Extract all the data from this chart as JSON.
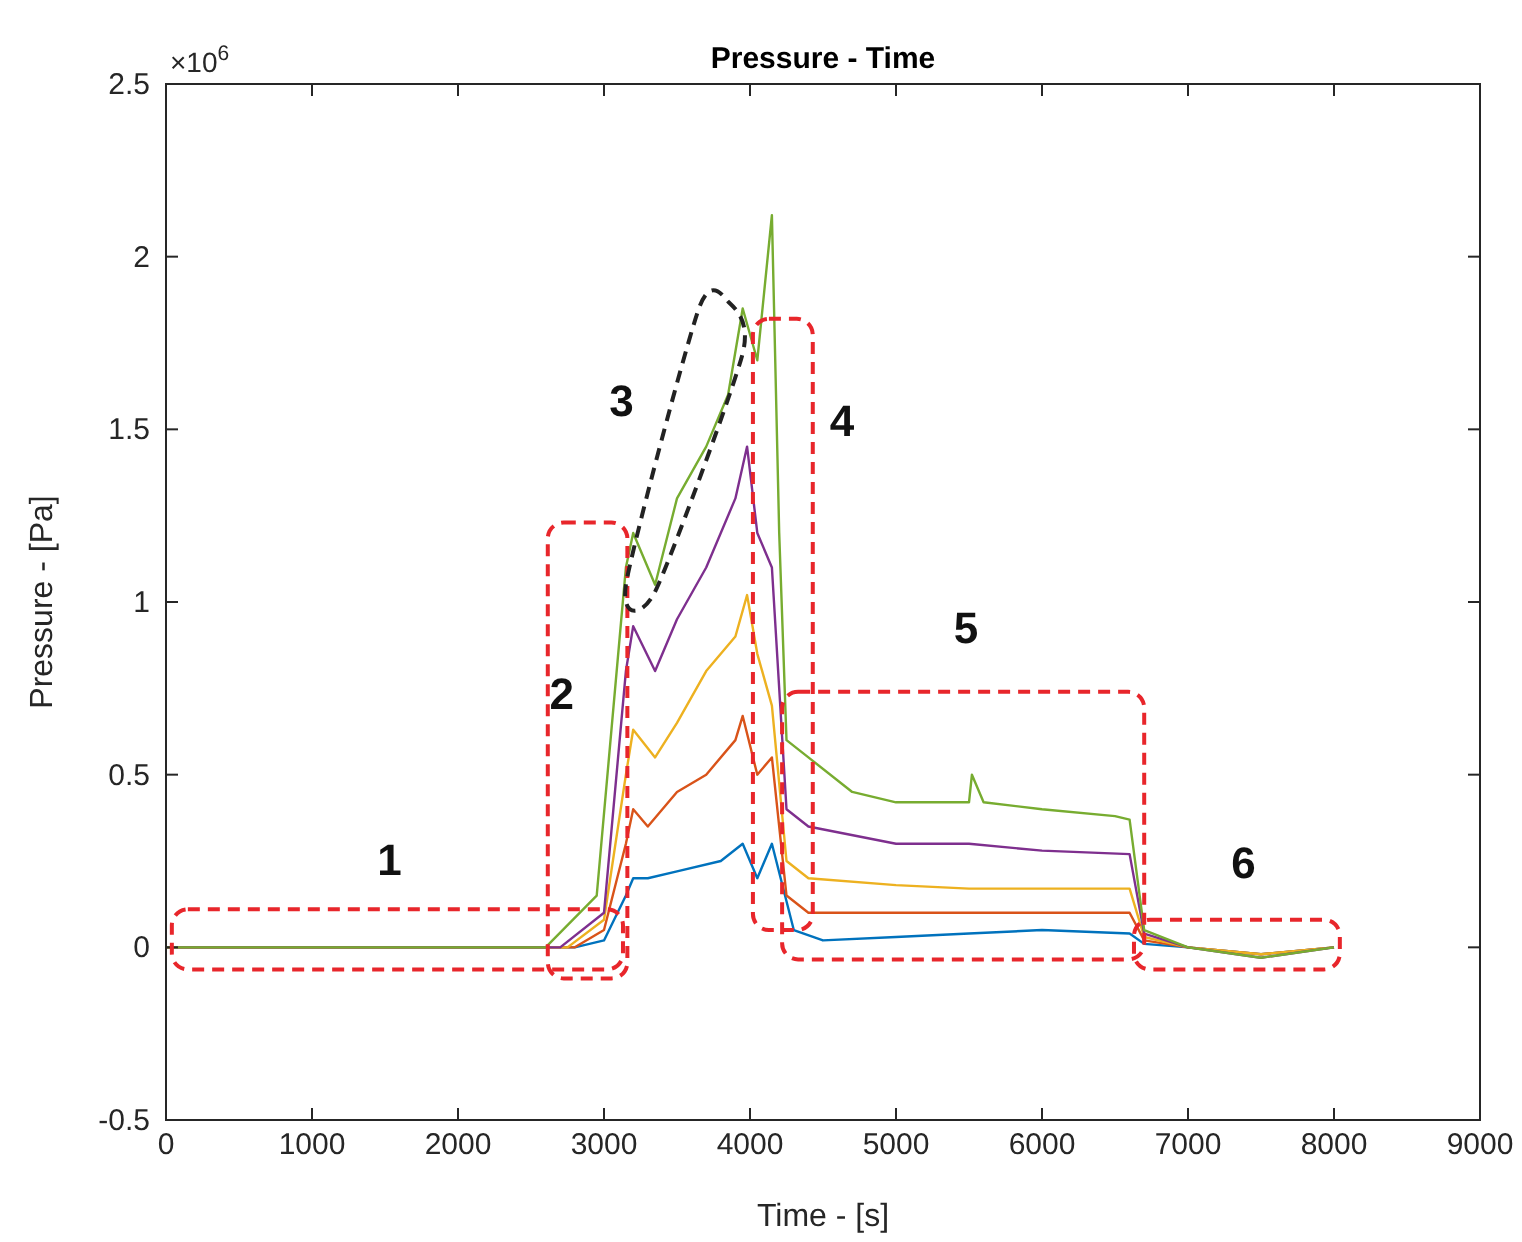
{
  "chart_data": {
    "type": "line",
    "title": "Pressure - Time",
    "xlabel": "Time - [s]",
    "ylabel": "Pressure - [Pa]",
    "annotations": [
      "×10$^{6}$",
      "1",
      "2",
      "3",
      "4",
      "5",
      "6"
    ],
    "xlim": [
      0,
      9000
    ],
    "xticks": [
      0,
      1000,
      2000,
      3000,
      4000,
      5000,
      6000,
      7000,
      8000,
      9000
    ],
    "ylim": [
      -0.5,
      2.5
    ],
    "yticks": [
      -0.5,
      0,
      0.5,
      1,
      1.5,
      2,
      2.5
    ],
    "grid": false,
    "marker": "none",
    "line_style": "solid",
    "series": [
      {
        "color": "#0072bd",
        "x": [
          0,
          2800,
          3000,
          3150,
          3200,
          3300,
          3500,
          3800,
          3950,
          4050,
          4150,
          4300,
          4500,
          5000,
          5500,
          6000,
          6600,
          6700,
          7000,
          7500,
          8000
        ],
        "values": [
          0,
          0,
          0.02,
          0.15,
          0.2,
          0.2,
          0.22,
          0.25,
          0.3,
          0.2,
          0.3,
          0.05,
          0.02,
          0.03,
          0.04,
          0.05,
          0.04,
          0.01,
          0,
          -0.02,
          0
        ]
      },
      {
        "color": "#d95319",
        "x": [
          0,
          2800,
          3000,
          3150,
          3200,
          3300,
          3500,
          3700,
          3900,
          3950,
          4050,
          4150,
          4250,
          4400,
          5000,
          5500,
          6000,
          6600,
          6700,
          7000,
          7500,
          8000
        ],
        "values": [
          0,
          0,
          0.05,
          0.3,
          0.4,
          0.35,
          0.45,
          0.5,
          0.6,
          0.67,
          0.5,
          0.55,
          0.15,
          0.1,
          0.1,
          0.1,
          0.1,
          0.1,
          0.02,
          0,
          -0.02,
          0
        ]
      },
      {
        "color": "#edb120",
        "x": [
          0,
          2750,
          3000,
          3150,
          3200,
          3350,
          3500,
          3700,
          3900,
          3980,
          4050,
          4150,
          4250,
          4400,
          5000,
          5500,
          6000,
          6600,
          6700,
          7000,
          7500,
          8000
        ],
        "values": [
          0,
          0,
          0.08,
          0.5,
          0.63,
          0.55,
          0.65,
          0.8,
          0.9,
          1.02,
          0.85,
          0.7,
          0.25,
          0.2,
          0.18,
          0.17,
          0.17,
          0.17,
          0.03,
          0,
          -0.02,
          0
        ]
      },
      {
        "color": "#7e2f8e",
        "x": [
          0,
          2700,
          3000,
          3150,
          3200,
          3350,
          3500,
          3700,
          3900,
          3980,
          4050,
          4150,
          4250,
          4400,
          5000,
          5500,
          6000,
          6600,
          6700,
          7000,
          7500,
          8000
        ],
        "values": [
          0,
          0,
          0.1,
          0.8,
          0.93,
          0.8,
          0.95,
          1.1,
          1.3,
          1.45,
          1.2,
          1.1,
          0.4,
          0.35,
          0.3,
          0.3,
          0.28,
          0.27,
          0.04,
          0,
          -0.03,
          0
        ]
      },
      {
        "color": "#77ac30",
        "x": [
          0,
          2600,
          2950,
          3150,
          3200,
          3350,
          3500,
          3700,
          3850,
          3950,
          4050,
          4150,
          4200,
          4250,
          4400,
          4700,
          5000,
          5500,
          5520,
          5600,
          6000,
          6500,
          6600,
          6700,
          7000,
          7500,
          8000
        ],
        "values": [
          0,
          0,
          0.15,
          1.1,
          1.2,
          1.05,
          1.3,
          1.45,
          1.6,
          1.85,
          1.7,
          2.12,
          1.2,
          0.6,
          0.55,
          0.45,
          0.42,
          0.42,
          0.5,
          0.42,
          0.4,
          0.38,
          0.37,
          0.05,
          0,
          -0.03,
          0
        ]
      }
    ]
  }
}
